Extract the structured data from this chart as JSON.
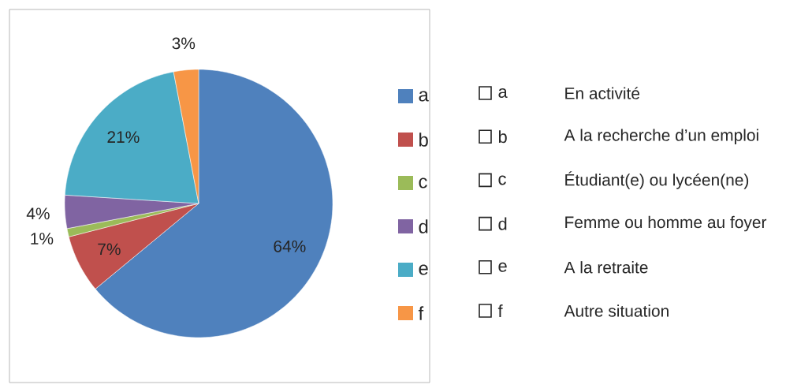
{
  "chart_data": [
    {
      "type": "pie",
      "categories": [
        "a",
        "b",
        "c",
        "d",
        "e",
        "f"
      ],
      "values": [
        64,
        7,
        1,
        4,
        21,
        3
      ],
      "colors": [
        "#4f81bd",
        "#c0504d",
        "#9bbb59",
        "#8064a2",
        "#4bacc6",
        "#f79646"
      ],
      "value_labels": [
        "64%",
        "7%",
        "1%",
        "4%",
        "21%",
        "3%"
      ],
      "legend": "right"
    },
    {
      "type": "other",
      "categories": [
        "a",
        "b",
        "c",
        "d",
        "e",
        "f"
      ],
      "annotations": [
        "En activité",
        "A la recherche d’un emploi",
        "Étudiant(e) ou lycéen(ne)",
        "Femme ou homme au foyer",
        "A la retraite",
        "Autre situation"
      ]
    }
  ]
}
